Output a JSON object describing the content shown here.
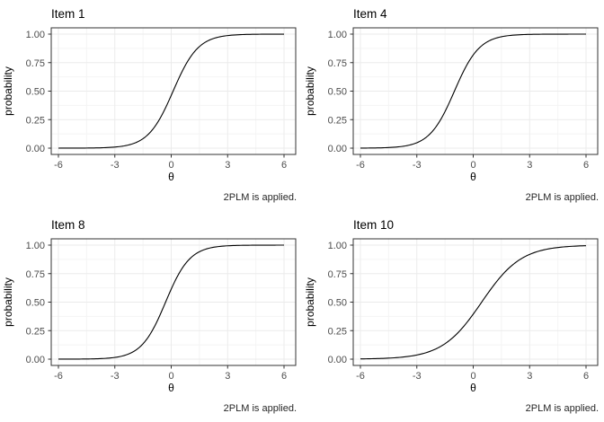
{
  "figure": {
    "description": "Item characteristic curves, 2PL IRT model, 2x2 panel grid",
    "caption": "2PLM is applied.",
    "xlabel": "θ",
    "ylabel": "probability"
  },
  "colors": {
    "background": "#ffffff",
    "panel_background": "#ffffff",
    "panel_border": "#333333",
    "grid_major": "#ebebeb",
    "grid_minor": "#f4f4f4",
    "tick_mark": "#333333",
    "tick_label": "#4d4d4d",
    "title_text": "#000000",
    "axis_label_text": "#000000",
    "caption_text": "#262626",
    "curve": "#000000"
  },
  "chart_data": [
    {
      "type": "line",
      "title": "Item 1",
      "xlabel": "θ",
      "ylabel": "probability",
      "caption": "2PLM is applied.",
      "xlim": [
        -6,
        6
      ],
      "ylim": [
        0,
        1
      ],
      "grid": true,
      "model": {
        "kind": "2PL",
        "a": 1.5,
        "b": 0.1
      },
      "xticks": {
        "values": [
          -6,
          -3,
          0,
          3,
          6
        ],
        "labels": [
          "-6",
          "-3",
          "0",
          "3",
          "6"
        ]
      },
      "yticks": {
        "values": [
          0,
          0.25,
          0.5,
          0.75,
          1.0
        ],
        "labels": [
          "0.00",
          "0.25",
          "0.50",
          "0.75",
          "1.00"
        ]
      },
      "x": [
        -6,
        -5.5,
        -5,
        -4.5,
        -4,
        -3.5,
        -3,
        -2.5,
        -2,
        -1.5,
        -1,
        -0.5,
        0,
        0.5,
        1,
        1.5,
        2,
        2.5,
        3,
        3.5,
        4,
        4.5,
        5,
        5.5,
        6
      ],
      "probability": [
        0.0001,
        0.0002,
        0.0005,
        0.001,
        0.0021,
        0.0045,
        0.0095,
        0.0198,
        0.0411,
        0.0832,
        0.1611,
        0.2891,
        0.4626,
        0.6457,
        0.7941,
        0.8909,
        0.9452,
        0.9734,
        0.9873,
        0.9939,
        0.9971,
        0.9986,
        0.9994,
        0.9997,
        0.9999
      ]
    },
    {
      "type": "line",
      "title": "Item 4",
      "xlabel": "θ",
      "ylabel": "probability",
      "caption": "2PLM is applied.",
      "xlim": [
        -6,
        6
      ],
      "ylim": [
        0,
        1
      ],
      "grid": true,
      "model": {
        "kind": "2PL",
        "a": 1.5,
        "b": -1.0
      },
      "xticks": {
        "values": [
          -6,
          -3,
          0,
          3,
          6
        ],
        "labels": [
          "-6",
          "-3",
          "0",
          "3",
          "6"
        ]
      },
      "yticks": {
        "values": [
          0,
          0.25,
          0.5,
          0.75,
          1.0
        ],
        "labels": [
          "0.00",
          "0.25",
          "0.50",
          "0.75",
          "1.00"
        ]
      },
      "x": [
        -6,
        -5.5,
        -5,
        -4.5,
        -4,
        -3.5,
        -3,
        -2.5,
        -2,
        -1.5,
        -1,
        -0.5,
        0,
        0.5,
        1,
        1.5,
        2,
        2.5,
        3,
        3.5,
        4,
        4.5,
        5,
        5.5,
        6
      ],
      "probability": [
        0.0006,
        0.0012,
        0.0025,
        0.0052,
        0.011,
        0.023,
        0.0474,
        0.0953,
        0.1824,
        0.3208,
        0.5,
        0.6792,
        0.8176,
        0.9047,
        0.9526,
        0.977,
        0.989,
        0.9948,
        0.9975,
        0.9988,
        0.9994,
        0.9997,
        0.9999,
        0.9999,
        1.0
      ]
    },
    {
      "type": "line",
      "title": "Item 8",
      "xlabel": "θ",
      "ylabel": "probability",
      "caption": "2PLM is applied.",
      "xlim": [
        -6,
        6
      ],
      "ylim": [
        0,
        1
      ],
      "grid": true,
      "model": {
        "kind": "2PL",
        "a": 1.55,
        "b": -0.3
      },
      "xticks": {
        "values": [
          -6,
          -3,
          0,
          3,
          6
        ],
        "labels": [
          "-6",
          "-3",
          "0",
          "3",
          "6"
        ]
      },
      "yticks": {
        "values": [
          0,
          0.25,
          0.5,
          0.75,
          1.0
        ],
        "labels": [
          "0.00",
          "0.25",
          "0.50",
          "0.75",
          "1.00"
        ]
      },
      "x": [
        -6,
        -5.5,
        -5,
        -4.5,
        -4,
        -3.5,
        -3,
        -2.5,
        -2,
        -1.5,
        -1,
        -0.5,
        0,
        0.5,
        1,
        1.5,
        2,
        2.5,
        3,
        3.5,
        4,
        4.5,
        5,
        5.5,
        6
      ],
      "probability": [
        0.0001,
        0.0003,
        0.0007,
        0.0015,
        0.0032,
        0.007,
        0.015,
        0.032,
        0.067,
        0.1347,
        0.2526,
        0.4231,
        0.6142,
        0.7756,
        0.8824,
        0.9422,
        0.9724,
        0.9871,
        0.994,
        0.9972,
        0.9987,
        0.9994,
        0.9997,
        0.9999,
        0.9999
      ]
    },
    {
      "type": "line",
      "title": "Item 10",
      "xlabel": "θ",
      "ylabel": "probability",
      "caption": "2PLM is applied.",
      "xlim": [
        -6,
        6
      ],
      "ylim": [
        0,
        1
      ],
      "grid": true,
      "model": {
        "kind": "2PL",
        "a": 0.95,
        "b": 0.45
      },
      "xticks": {
        "values": [
          -6,
          -3,
          0,
          3,
          6
        ],
        "labels": [
          "-6",
          "-3",
          "0",
          "3",
          "6"
        ]
      },
      "yticks": {
        "values": [
          0,
          0.25,
          0.5,
          0.75,
          1.0
        ],
        "labels": [
          "0.00",
          "0.25",
          "0.50",
          "0.75",
          "1.00"
        ]
      },
      "x": [
        -6,
        -5.5,
        -5,
        -4.5,
        -4,
        -3.5,
        -3,
        -2.5,
        -2,
        -1.5,
        -1,
        -0.5,
        0,
        0.5,
        1,
        1.5,
        2,
        2.5,
        3,
        3.5,
        4,
        4.5,
        5,
        5.5,
        6
      ],
      "probability": [
        0.0022,
        0.0035,
        0.0056,
        0.009,
        0.0144,
        0.0229,
        0.0364,
        0.0572,
        0.0889,
        0.1356,
        0.2014,
        0.2885,
        0.3947,
        0.5119,
        0.6277,
        0.7306,
        0.8133,
        0.8752,
        0.9185,
        0.9477,
        0.9668,
        0.9791,
        0.9869,
        0.9918,
        0.9949
      ]
    }
  ]
}
